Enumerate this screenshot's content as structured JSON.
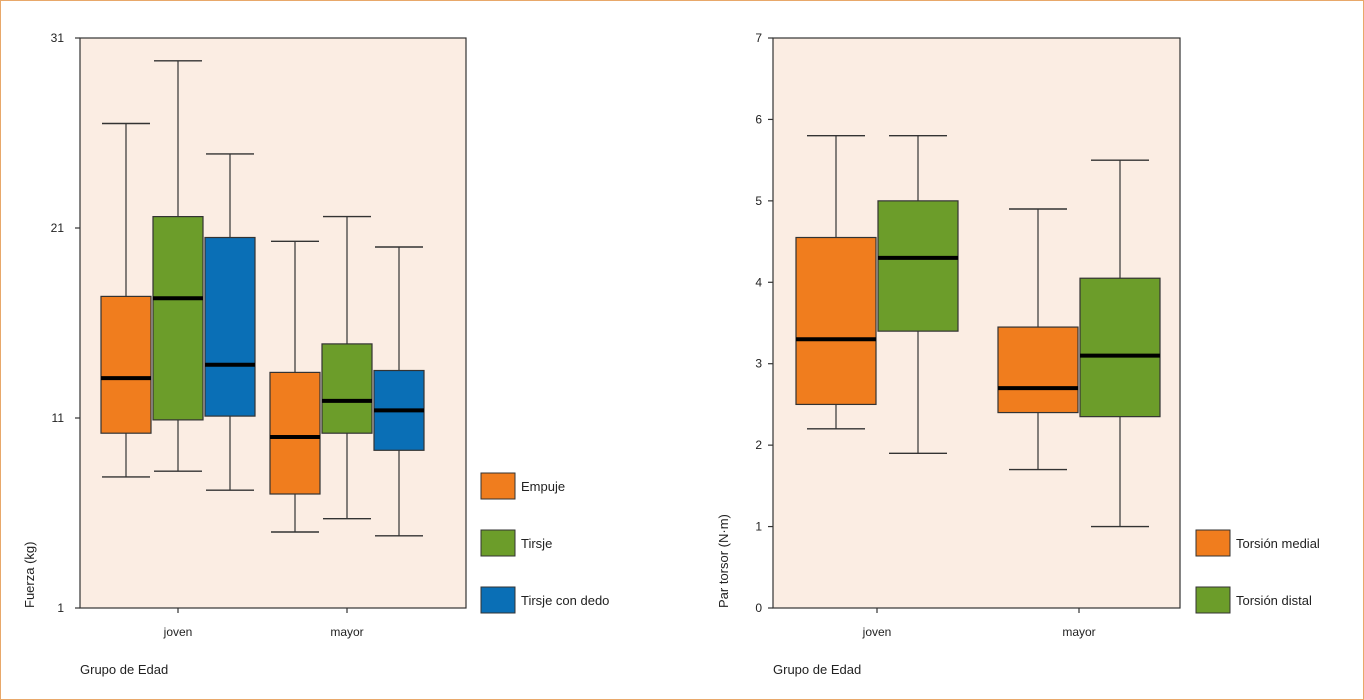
{
  "colors": {
    "plot_bg": "#fbede3",
    "empuje": "#f07d1e",
    "tirsje": "#6c9d2a",
    "tirsje_dedo": "#0a6fb6",
    "torsion_medial": "#f07d1e",
    "torsion_distal": "#6c9d2a",
    "frame": "#e8a86a"
  },
  "chart_data": [
    {
      "type": "boxplot",
      "xlabel": "Grupo de Edad",
      "ylabel": "Fuerza (kg)",
      "ylim": [
        1,
        31
      ],
      "yticks": [
        "1",
        "11",
        "21",
        "31"
      ],
      "categories": [
        "joven",
        "mayor"
      ],
      "legend_position": "right-bottom",
      "series": [
        {
          "name": "Empuje",
          "color_key": "empuje",
          "boxes": [
            {
              "whisker_low": 7.9,
              "q1": 10.2,
              "median": 13.1,
              "q3": 17.4,
              "whisker_high": 26.5
            },
            {
              "whisker_low": 5.0,
              "q1": 7.0,
              "median": 10.0,
              "q3": 13.4,
              "whisker_high": 20.3
            }
          ]
        },
        {
          "name": "Tirsje",
          "color_key": "tirsje",
          "boxes": [
            {
              "whisker_low": 8.2,
              "q1": 10.9,
              "median": 17.3,
              "q3": 21.6,
              "whisker_high": 29.8
            },
            {
              "whisker_low": 5.7,
              "q1": 10.2,
              "median": 11.9,
              "q3": 14.9,
              "whisker_high": 21.6
            }
          ]
        },
        {
          "name": "Tirsje con dedo",
          "color_key": "tirsje_dedo",
          "boxes": [
            {
              "whisker_low": 7.2,
              "q1": 11.1,
              "median": 13.8,
              "q3": 20.5,
              "whisker_high": 24.9
            },
            {
              "whisker_low": 4.8,
              "q1": 9.3,
              "median": 11.4,
              "q3": 13.5,
              "whisker_high": 20.0
            }
          ]
        }
      ]
    },
    {
      "type": "boxplot",
      "xlabel": "Grupo de Edad",
      "ylabel": "Par torsor (N·m)",
      "ylim": [
        0,
        7
      ],
      "yticks": [
        "0",
        "1",
        "2",
        "3",
        "4",
        "5",
        "6",
        "7"
      ],
      "categories": [
        "joven",
        "mayor"
      ],
      "legend_position": "right-bottom",
      "series": [
        {
          "name": "Torsión medial",
          "color_key": "torsion_medial",
          "boxes": [
            {
              "whisker_low": 2.2,
              "q1": 2.5,
              "median": 3.3,
              "q3": 4.55,
              "whisker_high": 5.8
            },
            {
              "whisker_low": 1.7,
              "q1": 2.4,
              "median": 2.7,
              "q3": 3.45,
              "whisker_high": 4.9
            }
          ]
        },
        {
          "name": "Torsión distal",
          "color_key": "torsion_distal",
          "boxes": [
            {
              "whisker_low": 1.9,
              "q1": 3.4,
              "median": 4.3,
              "q3": 5.0,
              "whisker_high": 5.8
            },
            {
              "whisker_low": 1.0,
              "q1": 2.35,
              "median": 3.1,
              "q3": 4.05,
              "whisker_high": 5.5
            }
          ]
        }
      ]
    }
  ]
}
